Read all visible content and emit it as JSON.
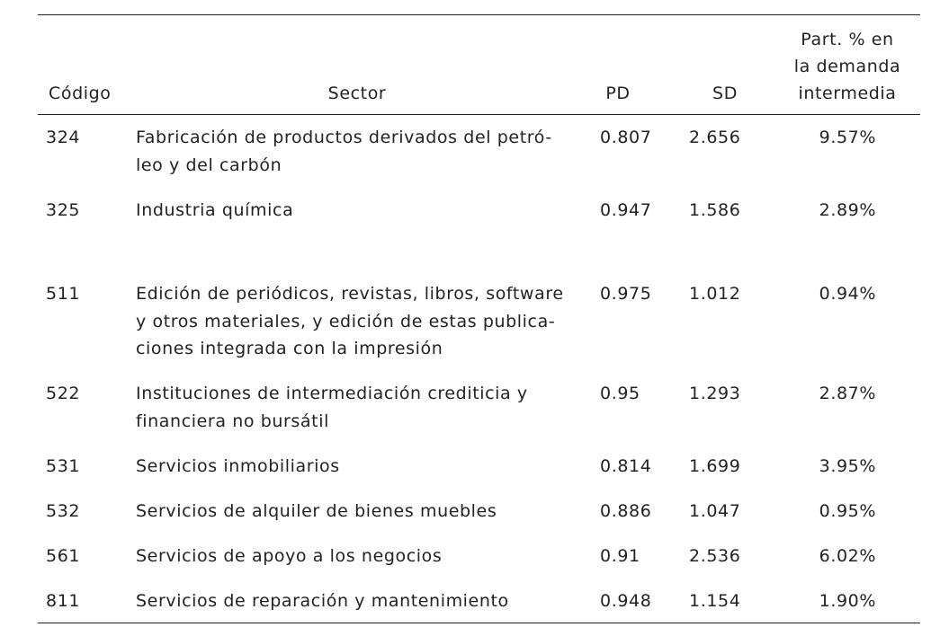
{
  "table": {
    "headers": {
      "codigo": "Código",
      "sector": "Sector",
      "pd": "PD",
      "sd": "SD",
      "part_lines": [
        "Part. % en",
        "la demanda",
        "intermedia"
      ]
    },
    "rows": [
      {
        "code": "324",
        "sector_lines": [
          "Fabricación de productos derivados del petró-",
          "leo y del carbón"
        ],
        "pd": "0.807",
        "sd": "2.656",
        "part": "9.57%"
      },
      {
        "code": "325",
        "sector_lines": [
          "Industria química"
        ],
        "pd": "0.947",
        "sd": "1.586",
        "part": "2.89%"
      },
      {
        "code": "511",
        "sector_lines": [
          "Edición de periódicos, revistas, libros, software",
          "y otros materiales, y edición de estas publica-",
          "ciones integrada con la impresión"
        ],
        "pd": "0.975",
        "sd": "1.012",
        "part": "0.94%"
      },
      {
        "code": "522",
        "sector_lines": [
          "Instituciones de intermediación crediticia y",
          "financiera no bursátil"
        ],
        "pd": "0.95",
        "sd": "1.293",
        "part": "2.87%"
      },
      {
        "code": "531",
        "sector_lines": [
          "Servicios inmobiliarios"
        ],
        "pd": "0.814",
        "sd": "1.699",
        "part": "3.95%"
      },
      {
        "code": "532",
        "sector_lines": [
          "Servicios de alquiler de bienes muebles"
        ],
        "pd": "0.886",
        "sd": "1.047",
        "part": "0.95%"
      },
      {
        "code": "561",
        "sector_lines": [
          "Servicios de apoyo a los negocios"
        ],
        "pd": "0.91",
        "sd": "2.536",
        "part": "6.02%"
      },
      {
        "code": "811",
        "sector_lines": [
          "Servicios de reparación y mantenimiento"
        ],
        "pd": "0.948",
        "sd": "1.154",
        "part": "1.90%"
      }
    ]
  }
}
